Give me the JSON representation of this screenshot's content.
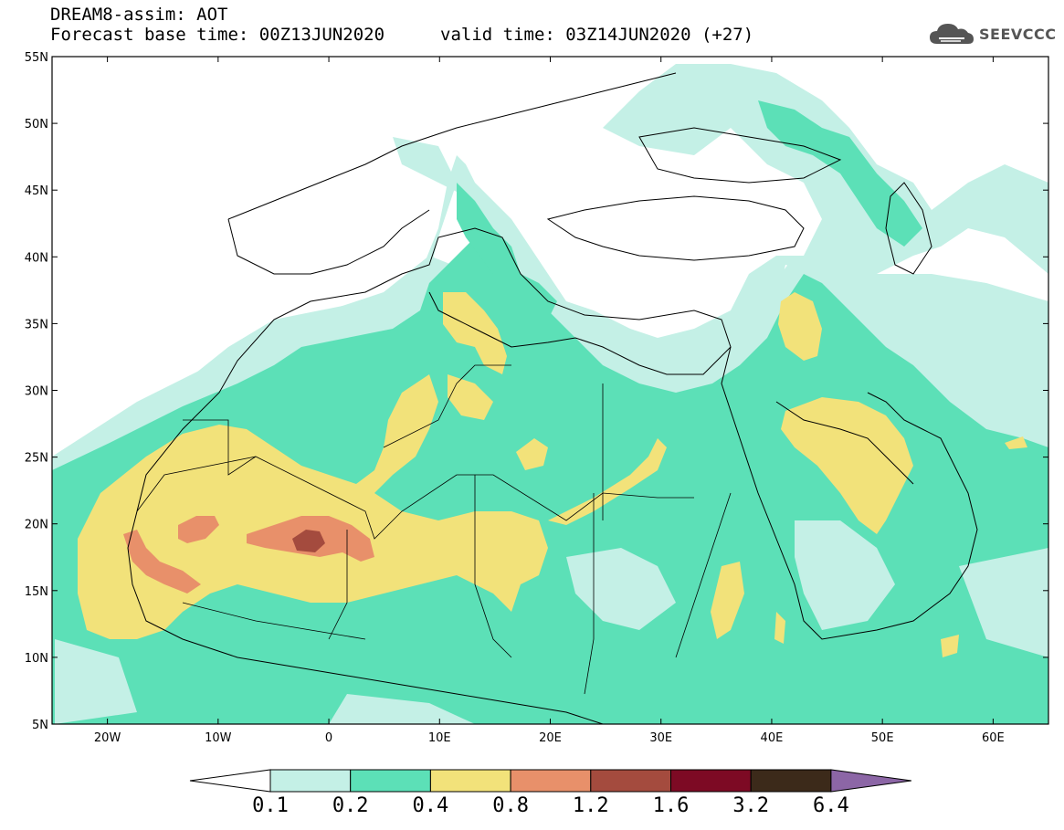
{
  "header": {
    "title": "DREAM8-assim: AOT",
    "base_time": "Forecast base time: 00Z13JUN2020",
    "valid_time": "valid time: 03Z14JUN2020 (+27)",
    "logo_text": "SEEVCCC",
    "logo_icon": "cloud-icon"
  },
  "map": {
    "lat_labels": [
      "55N",
      "50N",
      "45N",
      "40N",
      "35N",
      "30N",
      "25N",
      "20N",
      "15N",
      "10N",
      "5N"
    ],
    "lon_labels": [
      "20W",
      "10W",
      "0",
      "10E",
      "20E",
      "30E",
      "40E",
      "50E",
      "60E"
    ],
    "extent": {
      "lon_min": -25,
      "lon_max": 65,
      "lat_min": 5,
      "lat_max": 55
    }
  },
  "colorbar": {
    "levels": [
      "0.1",
      "0.2",
      "0.4",
      "0.8",
      "1.2",
      "1.6",
      "3.2",
      "6.4"
    ],
    "colors": [
      "#ffffff",
      "#c4f0e6",
      "#5ce0b7",
      "#f2e27a",
      "#e8906a",
      "#a44b3e",
      "#7d0a24",
      "#3c2a1a",
      "#8c66a6"
    ]
  },
  "palette": {
    "c1": "#c4f0e6",
    "c2": "#5ce0b7",
    "c3": "#f2e27a",
    "c4": "#e8906a",
    "c5": "#a44b3e"
  }
}
